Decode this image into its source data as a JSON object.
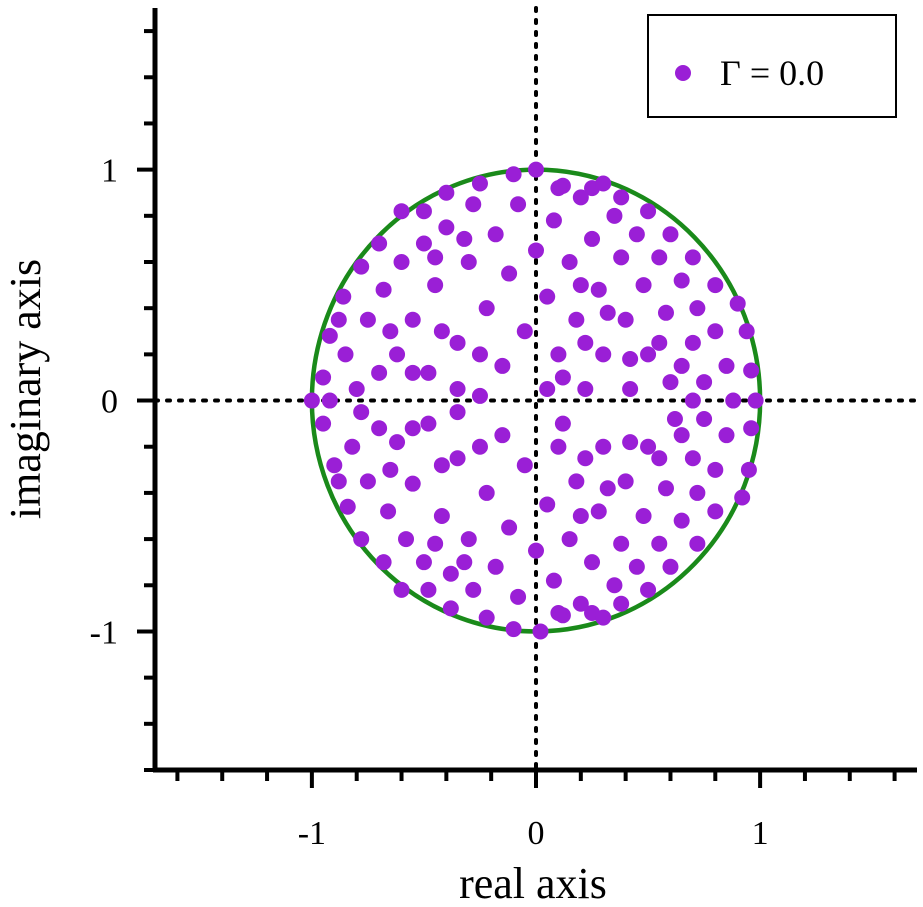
{
  "chart_data": {
    "type": "scatter",
    "title": "",
    "xlabel": "real axis",
    "ylabel": "imaginary axis",
    "xlim": [
      -1.7,
      1.7
    ],
    "ylim": [
      -1.6,
      1.7
    ],
    "xticks": [
      -1,
      0,
      1
    ],
    "yticks": [
      -1,
      0,
      1
    ],
    "xtick_labels": [
      "-1",
      "0",
      "1"
    ],
    "ytick_labels": [
      "-1",
      "0",
      "1"
    ],
    "reference_lines": {
      "x": 0,
      "y": 0,
      "style": "dotted",
      "color": "#000000"
    },
    "circle": {
      "center": [
        0,
        0
      ],
      "radius": 1,
      "color": "#1a8a1a"
    },
    "legend": {
      "position": "top-right",
      "entries": [
        "Γ = 0.0"
      ]
    },
    "series": [
      {
        "name": "Γ = 0.0",
        "color": "#9a1fd6",
        "marker": "circle",
        "points": [
          [
            -1.0,
            0.0
          ],
          [
            -0.95,
            0.1
          ],
          [
            -0.92,
            0.28
          ],
          [
            -0.9,
            -0.28
          ],
          [
            -0.95,
            -0.1
          ],
          [
            -0.86,
            0.45
          ],
          [
            -0.84,
            -0.46
          ],
          [
            -0.78,
            0.58
          ],
          [
            -0.78,
            -0.6
          ],
          [
            -0.7,
            0.68
          ],
          [
            -0.68,
            -0.7
          ],
          [
            -0.6,
            0.82
          ],
          [
            -0.6,
            -0.82
          ],
          [
            -0.5,
            0.82
          ],
          [
            -0.48,
            -0.82
          ],
          [
            -0.4,
            0.9
          ],
          [
            -0.38,
            -0.9
          ],
          [
            -0.25,
            0.94
          ],
          [
            -0.22,
            -0.94
          ],
          [
            -0.1,
            0.98
          ],
          [
            -0.1,
            -0.99
          ],
          [
            0.0,
            1.0
          ],
          [
            0.02,
            -1.0
          ],
          [
            0.12,
            0.93
          ],
          [
            0.12,
            -0.93
          ],
          [
            0.25,
            0.92
          ],
          [
            0.25,
            -0.92
          ],
          [
            0.38,
            0.88
          ],
          [
            0.38,
            -0.88
          ],
          [
            0.5,
            0.82
          ],
          [
            0.5,
            -0.82
          ],
          [
            0.6,
            0.72
          ],
          [
            0.6,
            -0.72
          ],
          [
            0.7,
            0.62
          ],
          [
            0.72,
            -0.62
          ],
          [
            0.8,
            0.5
          ],
          [
            0.8,
            -0.48
          ],
          [
            0.9,
            0.42
          ],
          [
            0.92,
            -0.42
          ],
          [
            0.94,
            0.3
          ],
          [
            0.95,
            -0.3
          ],
          [
            0.96,
            0.13
          ],
          [
            0.96,
            -0.12
          ],
          [
            0.98,
            0.0
          ],
          [
            -0.85,
            0.2
          ],
          [
            -0.82,
            -0.2
          ],
          [
            -0.75,
            0.35
          ],
          [
            -0.75,
            -0.35
          ],
          [
            -0.8,
            0.05
          ],
          [
            -0.78,
            -0.05
          ],
          [
            -0.68,
            0.48
          ],
          [
            -0.66,
            -0.48
          ],
          [
            -0.62,
            0.2
          ],
          [
            -0.62,
            -0.18
          ],
          [
            -0.6,
            0.6
          ],
          [
            -0.58,
            -0.6
          ],
          [
            -0.55,
            0.35
          ],
          [
            -0.55,
            -0.36
          ],
          [
            -0.5,
            0.68
          ],
          [
            -0.5,
            -0.7
          ],
          [
            -0.48,
            0.12
          ],
          [
            -0.48,
            -0.1
          ],
          [
            -0.45,
            0.5
          ],
          [
            -0.42,
            -0.5
          ],
          [
            -0.4,
            0.75
          ],
          [
            -0.38,
            -0.75
          ],
          [
            -0.35,
            0.25
          ],
          [
            -0.35,
            -0.25
          ],
          [
            -0.3,
            0.6
          ],
          [
            -0.3,
            -0.6
          ],
          [
            -0.28,
            0.85
          ],
          [
            -0.28,
            -0.82
          ],
          [
            -0.25,
            0.02
          ],
          [
            -0.22,
            0.4
          ],
          [
            -0.22,
            -0.4
          ],
          [
            -0.18,
            0.72
          ],
          [
            -0.18,
            -0.72
          ],
          [
            -0.15,
            0.15
          ],
          [
            -0.15,
            -0.15
          ],
          [
            -0.12,
            0.55
          ],
          [
            -0.12,
            -0.55
          ],
          [
            -0.08,
            0.85
          ],
          [
            -0.08,
            -0.85
          ],
          [
            -0.05,
            0.3
          ],
          [
            -0.05,
            -0.28
          ],
          [
            0.0,
            0.65
          ],
          [
            0.0,
            -0.65
          ],
          [
            0.05,
            0.45
          ],
          [
            0.05,
            -0.45
          ],
          [
            0.05,
            0.05
          ],
          [
            0.08,
            0.78
          ],
          [
            0.08,
            -0.78
          ],
          [
            0.1,
            0.2
          ],
          [
            0.1,
            -0.2
          ],
          [
            0.15,
            0.6
          ],
          [
            0.15,
            -0.6
          ],
          [
            0.18,
            0.35
          ],
          [
            0.18,
            -0.35
          ],
          [
            0.2,
            0.88
          ],
          [
            0.2,
            -0.88
          ],
          [
            0.22,
            0.05
          ],
          [
            0.25,
            0.7
          ],
          [
            0.25,
            -0.7
          ],
          [
            0.28,
            0.48
          ],
          [
            0.28,
            -0.48
          ],
          [
            0.3,
            0.2
          ],
          [
            0.3,
            -0.2
          ],
          [
            0.35,
            0.8
          ],
          [
            0.35,
            -0.8
          ],
          [
            0.38,
            0.62
          ],
          [
            0.38,
            -0.62
          ],
          [
            0.4,
            0.35
          ],
          [
            0.4,
            -0.35
          ],
          [
            0.42,
            0.05
          ],
          [
            0.45,
            0.72
          ],
          [
            0.45,
            -0.72
          ],
          [
            0.48,
            0.5
          ],
          [
            0.48,
            -0.5
          ],
          [
            0.5,
            0.2
          ],
          [
            0.5,
            -0.2
          ],
          [
            0.55,
            0.62
          ],
          [
            0.55,
            -0.62
          ],
          [
            0.58,
            0.38
          ],
          [
            0.58,
            -0.38
          ],
          [
            0.6,
            0.08
          ],
          [
            0.62,
            -0.08
          ],
          [
            0.65,
            0.52
          ],
          [
            0.65,
            -0.52
          ],
          [
            0.7,
            0.25
          ],
          [
            0.7,
            -0.25
          ],
          [
            0.72,
            0.4
          ],
          [
            0.72,
            -0.4
          ],
          [
            0.75,
            0.08
          ],
          [
            0.75,
            -0.08
          ],
          [
            0.8,
            0.3
          ],
          [
            0.8,
            -0.3
          ],
          [
            0.85,
            0.15
          ],
          [
            0.85,
            -0.15
          ],
          [
            -0.92,
            0.0
          ],
          [
            -0.88,
            0.35
          ],
          [
            -0.88,
            -0.35
          ],
          [
            -0.7,
            0.12
          ],
          [
            -0.7,
            -0.12
          ],
          [
            -0.65,
            0.3
          ],
          [
            -0.65,
            -0.3
          ],
          [
            -0.42,
            0.3
          ],
          [
            -0.42,
            -0.28
          ],
          [
            -0.35,
            0.05
          ],
          [
            -0.35,
            -0.05
          ],
          [
            -0.25,
            0.2
          ],
          [
            -0.25,
            -0.2
          ],
          [
            0.12,
            0.1
          ],
          [
            0.12,
            -0.1
          ],
          [
            0.22,
            0.25
          ],
          [
            0.22,
            -0.25
          ],
          [
            0.32,
            0.38
          ],
          [
            0.32,
            -0.38
          ],
          [
            0.42,
            0.18
          ],
          [
            0.42,
            -0.18
          ],
          [
            0.55,
            0.25
          ],
          [
            0.55,
            -0.25
          ],
          [
            0.65,
            0.15
          ],
          [
            0.65,
            -0.15
          ],
          [
            0.7,
            0.0
          ],
          [
            0.88,
            0.0
          ],
          [
            -0.55,
            0.12
          ],
          [
            -0.55,
            -0.12
          ],
          [
            -0.45,
            0.62
          ],
          [
            -0.45,
            -0.62
          ],
          [
            0.1,
            0.92
          ],
          [
            0.1,
            -0.92
          ],
          [
            0.3,
            0.94
          ],
          [
            0.3,
            -0.94
          ],
          [
            -0.32,
            0.7
          ],
          [
            -0.32,
            -0.7
          ],
          [
            0.2,
            0.5
          ],
          [
            0.2,
            -0.5
          ]
        ]
      }
    ]
  }
}
